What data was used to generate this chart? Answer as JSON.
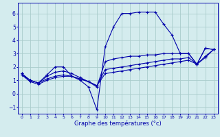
{
  "background_color": "#d4ecee",
  "grid_color": "#aacccc",
  "line_color": "#0000aa",
  "xlabel": "Graphe des températures (°c)",
  "ylim": [
    -1.5,
    6.8
  ],
  "xlim": [
    -0.5,
    23.5
  ],
  "yticks": [
    -1,
    0,
    1,
    2,
    3,
    4,
    5,
    6
  ],
  "xticks": [
    0,
    1,
    2,
    3,
    4,
    5,
    6,
    7,
    8,
    9,
    10,
    11,
    12,
    13,
    14,
    15,
    16,
    17,
    18,
    19,
    20,
    21,
    22,
    23
  ],
  "lines": [
    {
      "x": [
        0,
        1,
        2,
        3,
        4,
        5,
        6,
        7,
        8,
        9,
        10,
        11,
        12,
        13,
        14,
        15,
        16,
        17,
        18,
        19,
        20,
        21,
        22,
        23
      ],
      "y": [
        1.5,
        1.0,
        0.8,
        1.4,
        2.0,
        2.0,
        1.3,
        1.0,
        0.5,
        -1.2,
        3.5,
        5.0,
        6.0,
        6.0,
        6.1,
        6.1,
        6.1,
        5.2,
        4.4,
        3.0,
        3.0,
        2.2,
        3.4,
        3.3
      ]
    },
    {
      "x": [
        0,
        1,
        2,
        3,
        4,
        5,
        6,
        7,
        8,
        9,
        10,
        11,
        12,
        13,
        14,
        15,
        16,
        17,
        18,
        19,
        20,
        21,
        22,
        23
      ],
      "y": [
        1.5,
        1.0,
        0.8,
        1.3,
        1.6,
        1.7,
        1.5,
        1.2,
        0.9,
        0.5,
        2.4,
        2.6,
        2.7,
        2.8,
        2.8,
        2.9,
        2.9,
        3.0,
        3.0,
        3.0,
        3.0,
        2.2,
        3.4,
        3.3
      ]
    },
    {
      "x": [
        0,
        1,
        2,
        3,
        4,
        5,
        6,
        7,
        8,
        9,
        10,
        11,
        12,
        13,
        14,
        15,
        16,
        17,
        18,
        19,
        20,
        21,
        22,
        23
      ],
      "y": [
        1.4,
        1.0,
        0.8,
        1.1,
        1.3,
        1.4,
        1.3,
        1.1,
        0.9,
        0.6,
        1.8,
        1.9,
        2.0,
        2.1,
        2.2,
        2.3,
        2.4,
        2.5,
        2.6,
        2.6,
        2.7,
        2.2,
        2.8,
        3.3
      ]
    },
    {
      "x": [
        0,
        1,
        2,
        3,
        4,
        5,
        6,
        7,
        8,
        9,
        10,
        11,
        12,
        13,
        14,
        15,
        16,
        17,
        18,
        19,
        20,
        21,
        22,
        23
      ],
      "y": [
        1.4,
        0.9,
        0.7,
        1.0,
        1.2,
        1.3,
        1.3,
        1.1,
        0.9,
        0.6,
        1.5,
        1.6,
        1.7,
        1.8,
        1.9,
        2.0,
        2.1,
        2.2,
        2.3,
        2.4,
        2.5,
        2.2,
        2.7,
        3.3
      ]
    }
  ]
}
